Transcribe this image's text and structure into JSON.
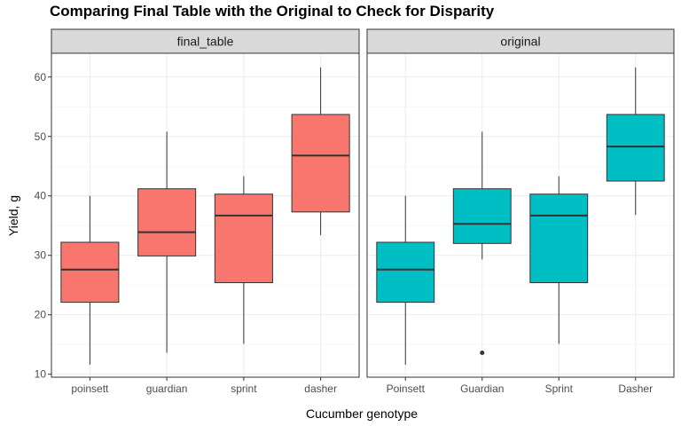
{
  "chart_data": {
    "type": "boxplot",
    "title": "Comparing Final Table with the Original to Check for Disparity",
    "xlabel": "Cucumber genotype",
    "ylabel": "Yield, g",
    "ylim": [
      9.5,
      64
    ],
    "yticks": [
      10,
      20,
      30,
      40,
      50,
      60
    ],
    "grid": true,
    "panels": [
      {
        "name": "final_table",
        "color": "#F8766D",
        "categories": [
          "poinsett",
          "guardian",
          "sprint",
          "dasher"
        ],
        "boxes": [
          {
            "category": "poinsett",
            "min": 11.6,
            "q1": 22.1,
            "median": 27.6,
            "q3": 32.2,
            "max": 40.0,
            "outliers": []
          },
          {
            "category": "guardian",
            "min": 13.6,
            "q1": 29.9,
            "median": 33.9,
            "q3": 41.2,
            "max": 50.8,
            "outliers": []
          },
          {
            "category": "sprint",
            "min": 15.1,
            "q1": 25.4,
            "median": 36.7,
            "q3": 40.3,
            "max": 43.3,
            "outliers": []
          },
          {
            "category": "dasher",
            "min": 33.4,
            "q1": 37.3,
            "median": 46.8,
            "q3": 53.7,
            "max": 61.6,
            "outliers": []
          }
        ]
      },
      {
        "name": "original",
        "color": "#00BFC4",
        "categories": [
          "Poinsett",
          "Guardian",
          "Sprint",
          "Dasher"
        ],
        "boxes": [
          {
            "category": "Poinsett",
            "min": 11.6,
            "q1": 22.1,
            "median": 27.6,
            "q3": 32.2,
            "max": 40.0,
            "outliers": []
          },
          {
            "category": "Guardian",
            "min": 29.3,
            "q1": 32.0,
            "median": 35.3,
            "q3": 41.2,
            "max": 50.8,
            "outliers": [
              13.6
            ]
          },
          {
            "category": "Sprint",
            "min": 15.1,
            "q1": 25.4,
            "median": 36.7,
            "q3": 40.3,
            "max": 43.3,
            "outliers": []
          },
          {
            "category": "Dasher",
            "min": 36.8,
            "q1": 42.5,
            "median": 48.3,
            "q3": 53.7,
            "max": 61.6,
            "outliers": []
          }
        ]
      }
    ]
  }
}
